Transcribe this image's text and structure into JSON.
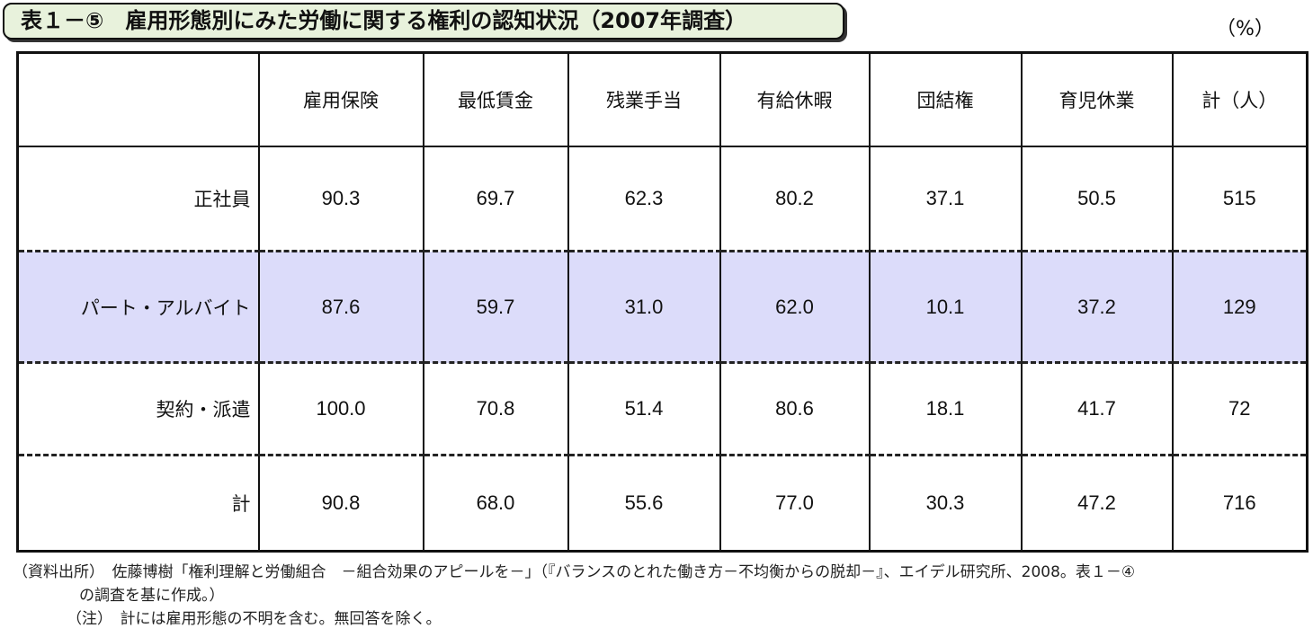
{
  "title": "表１－⑤　雇用形態別にみた労働に関する権利の認知状況（2007年調査）",
  "unit": "（%）",
  "table": {
    "corner": "",
    "headers": [
      "雇用保険",
      "最低賃金",
      "残業手当",
      "有給休暇",
      "団結権",
      "育児休業",
      "計（人）"
    ],
    "rows": [
      {
        "label": "正社員",
        "values": [
          "90.3",
          "69.7",
          "62.3",
          "80.2",
          "37.1",
          "50.5",
          "515"
        ]
      },
      {
        "label": "パート・アルバイト",
        "values": [
          "87.6",
          "59.7",
          "31.0",
          "62.0",
          "10.1",
          "37.2",
          "129"
        ]
      },
      {
        "label": "契約・派遣",
        "values": [
          "100.0",
          "70.8",
          "51.4",
          "80.6",
          "18.1",
          "41.7",
          "72"
        ]
      },
      {
        "label": "計",
        "values": [
          "90.8",
          "68.0",
          "55.6",
          "77.0",
          "30.3",
          "47.2",
          "716"
        ]
      }
    ]
  },
  "highlight_color": "#dcdcfa",
  "notes": {
    "source_line1": "（資料出所）　佐藤博樹「権利理解と労働組合　－組合効果のアピールを－」（『バランスのとれた働き方－不均衡からの脱却－』、エイデル研究所、2008。表１－④",
    "source_line2": "の調査を基に作成。）",
    "note": "（注）　計には雇用形態の不明を含む。無回答を除く。"
  }
}
